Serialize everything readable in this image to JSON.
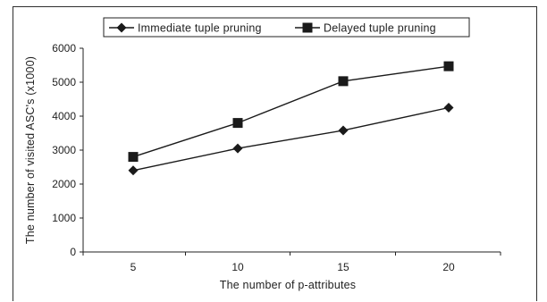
{
  "chart_data": {
    "type": "line",
    "categories": [
      "5",
      "10",
      "15",
      "20"
    ],
    "x": [
      5,
      10,
      15,
      20
    ],
    "series": [
      {
        "name": "Immediate tuple pruning",
        "marker": "diamond",
        "values": [
          2400,
          3050,
          3580,
          4250
        ]
      },
      {
        "name": "Delayed tuple pruning",
        "marker": "square",
        "values": [
          2800,
          3800,
          5030,
          5470
        ]
      }
    ],
    "xlabel": "The number of p-attributes",
    "ylabel": "The number of visited ASC's (x1000)",
    "ylim": [
      0,
      6000
    ],
    "yticks": [
      0,
      1000,
      2000,
      3000,
      4000,
      5000,
      6000
    ],
    "xtick_labels": [
      "5",
      "10",
      "15",
      "20"
    ],
    "grid": false,
    "legend_position": "top",
    "line_color": "#1a1a1a"
  }
}
